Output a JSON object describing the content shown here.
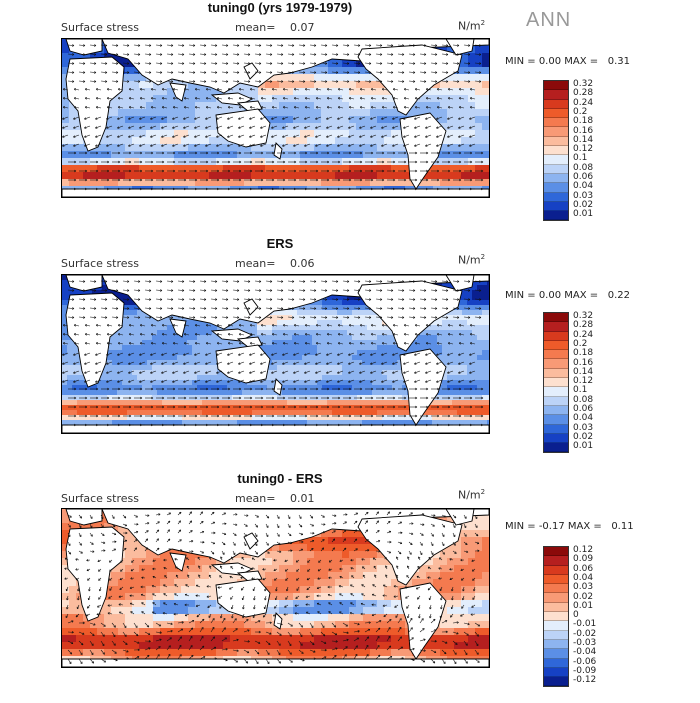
{
  "season": "ANN",
  "panels": [
    {
      "title": "tuning0 (yrs 1979-1979)",
      "variable": "Surface stress",
      "mean_label": "mean=",
      "mean_value": "0.07",
      "units": "N/m",
      "units_exp": "2",
      "min_label": "MIN =",
      "min_value": "0.00",
      "max_label": "MAX =",
      "max_value": "0.31",
      "colorbar": [
        "0.32",
        "0.28",
        "0.24",
        "0.2",
        "0.18",
        "0.16",
        "0.14",
        "0.12",
        "0.1",
        "0.08",
        "0.06",
        "0.04",
        "0.03",
        "0.02",
        "0.01"
      ],
      "pattern": "model"
    },
    {
      "title": "ERS",
      "variable": "Surface stress",
      "mean_label": "mean=",
      "mean_value": "0.06",
      "units": "N/m",
      "units_exp": "2",
      "min_label": "MIN =",
      "min_value": "0.00",
      "max_label": "MAX =",
      "max_value": "0.22",
      "colorbar": [
        "0.32",
        "0.28",
        "0.24",
        "0.2",
        "0.18",
        "0.16",
        "0.14",
        "0.12",
        "0.1",
        "0.08",
        "0.06",
        "0.04",
        "0.03",
        "0.02",
        "0.01"
      ],
      "pattern": "obs"
    },
    {
      "title": "tuning0 - ERS",
      "variable": "Surface stress",
      "mean_label": "mean=",
      "mean_value": "0.01",
      "units": "N/m",
      "units_exp": "2",
      "min_label": "MIN =",
      "min_value": "-0.17",
      "max_label": "MAX =",
      "max_value": "0.11",
      "colorbar": [
        "0.12",
        "0.09",
        "0.06",
        "0.04",
        "0.03",
        "0.02",
        "0.01",
        "0",
        "-0.01",
        "-0.02",
        "-0.03",
        "-0.04",
        "-0.06",
        "-0.09",
        "-0.12"
      ],
      "pattern": "diff"
    }
  ],
  "colors": {
    "scale": [
      "#8b0a0a",
      "#b51f1f",
      "#d83a1e",
      "#ee5b2a",
      "#f47a4f",
      "#f89a76",
      "#fbbc9e",
      "#fde0cf",
      "#e3eefc",
      "#bcd3f7",
      "#8db4f0",
      "#5b8fe6",
      "#2f67d9",
      "#1641c4",
      "#0a1f8f"
    ],
    "land": "#ffffff",
    "coast": "#000000",
    "arrow": "#111111"
  }
}
